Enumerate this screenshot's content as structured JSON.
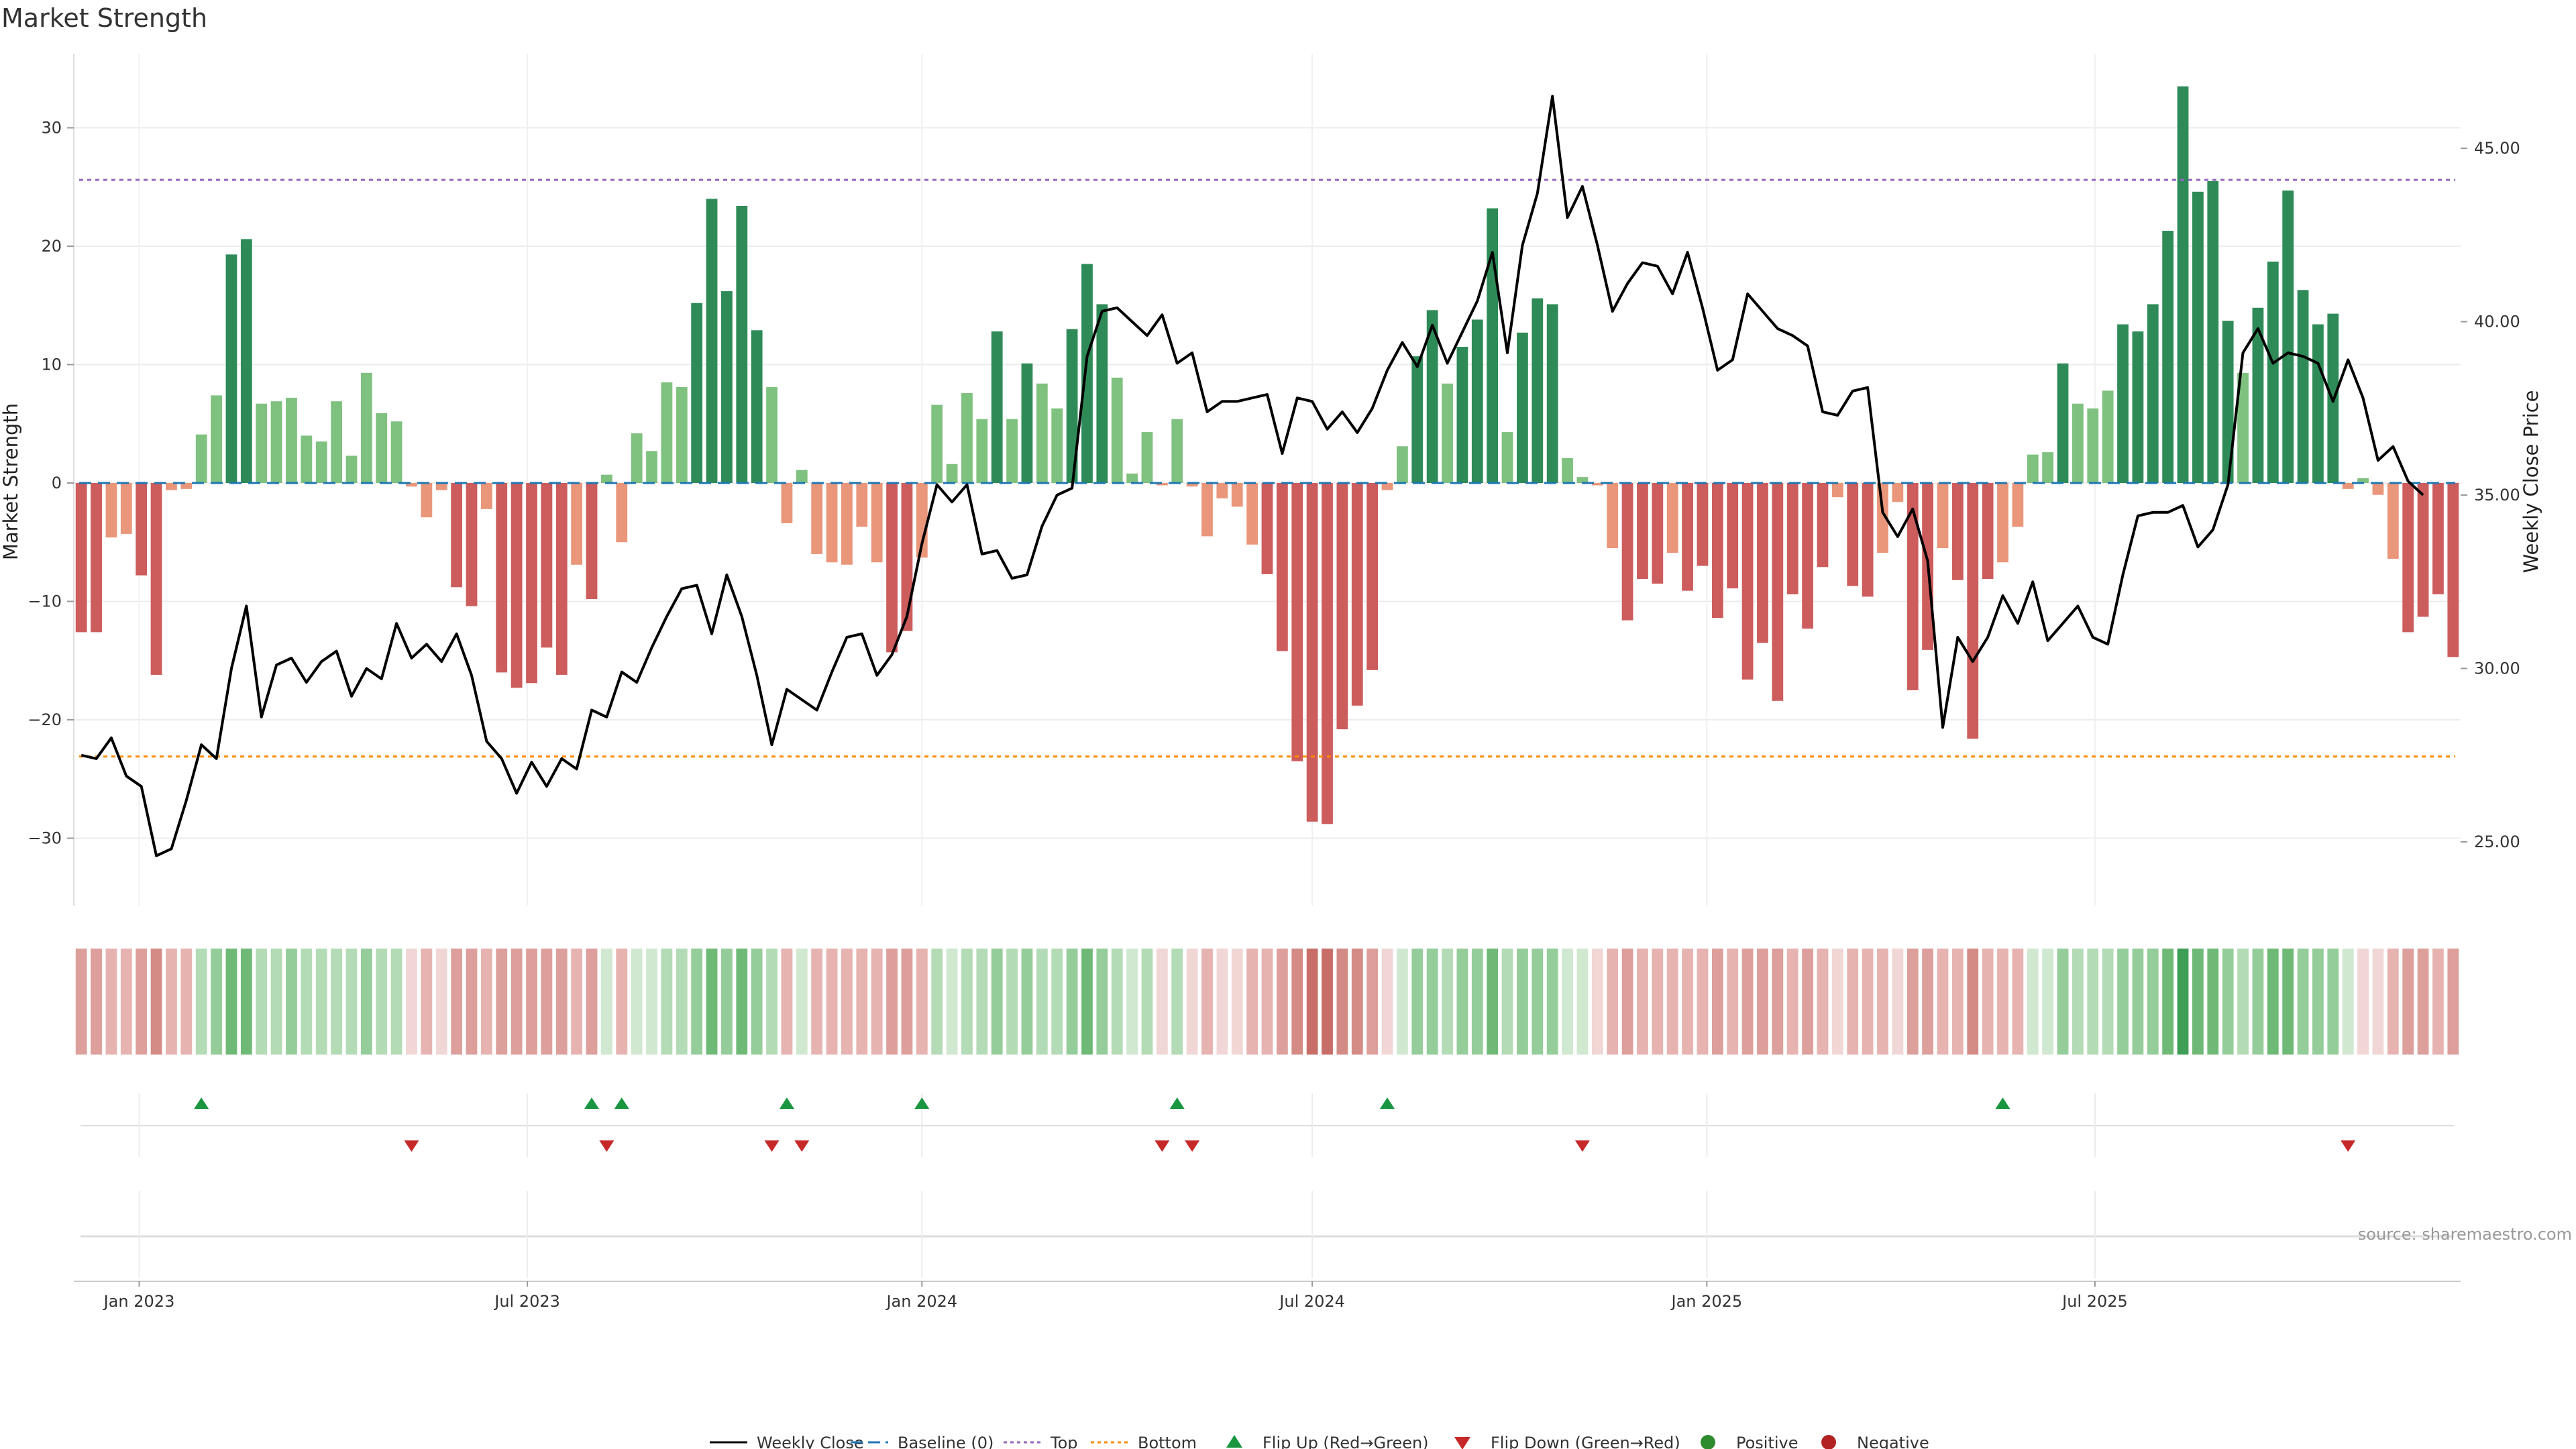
{
  "chart_data": {
    "type": "bar",
    "title": "Market Strength",
    "ylabel": "Market Strength",
    "y2label": "Weekly Close Price",
    "ylim": [
      -36,
      37
    ],
    "y2lim": [
      23.0,
      48.0
    ],
    "yticks": [
      30,
      20,
      10,
      0,
      -10,
      -20,
      -30
    ],
    "y2ticks": [
      "45.00",
      "40.00",
      "35.00",
      "30.00",
      "25.00"
    ],
    "x_start": "2022-12-05",
    "x_step_days": 7,
    "xticks": [
      {
        "date": "2023-01-01",
        "label": "Jan 2023"
      },
      {
        "date": "2023-07-01",
        "label": "Jul 2023"
      },
      {
        "date": "2024-01-01",
        "label": "Jan 2024"
      },
      {
        "date": "2024-07-01",
        "label": "Jul 2024"
      },
      {
        "date": "2025-01-01",
        "label": "Jan 2025"
      },
      {
        "date": "2025-07-01",
        "label": "Jul 2025"
      }
    ],
    "top_line": 25.6,
    "bottom_line": -23.1,
    "baseline": 0,
    "strength": [
      -12.6,
      -12.6,
      -4.6,
      -4.3,
      -7.8,
      -16.2,
      -0.6,
      -0.5,
      4.1,
      7.4,
      19.3,
      20.6,
      6.7,
      6.9,
      7.2,
      4.0,
      3.5,
      6.9,
      2.3,
      9.3,
      5.9,
      5.2,
      -0.3,
      -2.9,
      -0.6,
      -8.8,
      -10.4,
      -2.2,
      -16.0,
      -17.3,
      -16.9,
      -13.9,
      -16.2,
      -6.9,
      -9.8,
      0.7,
      -5.0,
      4.2,
      2.7,
      8.5,
      8.1,
      15.2,
      24.0,
      16.2,
      23.4,
      12.9,
      8.1,
      -3.4,
      1.1,
      -6.0,
      -6.7,
      -6.9,
      -3.7,
      -6.7,
      -14.3,
      -12.5,
      -6.3,
      6.6,
      1.6,
      7.6,
      5.4,
      12.8,
      5.4,
      10.1,
      8.4,
      6.3,
      13.0,
      18.5,
      15.1,
      8.9,
      0.8,
      4.3,
      -0.2,
      5.4,
      -0.3,
      -4.5,
      -1.3,
      -2.0,
      -5.2,
      -7.7,
      -14.2,
      -23.5,
      -28.6,
      -28.8,
      -20.8,
      -18.8,
      -15.8,
      -0.6,
      3.1,
      10.7,
      14.6,
      8.4,
      11.5,
      13.8,
      23.2,
      4.3,
      12.7,
      15.6,
      15.1,
      2.1,
      0.5,
      -0.2,
      -5.5,
      -11.6,
      -8.1,
      -8.5,
      -5.9,
      -9.1,
      -7.0,
      -11.4,
      -8.9,
      -16.6,
      -13.5,
      -18.4,
      -9.4,
      -12.3,
      -7.1,
      -1.2,
      -8.7,
      -9.6,
      -5.9,
      -1.6,
      -17.5,
      -14.1,
      -5.5,
      -8.2,
      -21.6,
      -8.1,
      -6.7,
      -3.7,
      2.4,
      2.6,
      10.1,
      6.7,
      6.3,
      7.8,
      13.4,
      12.8,
      15.1,
      21.3,
      33.5,
      24.6,
      25.5,
      13.7,
      9.3,
      14.8,
      18.7,
      24.7,
      16.3,
      13.4,
      14.3,
      -0.5,
      0.4,
      -1.0,
      -6.4,
      -12.6,
      -11.3,
      -9.4,
      -14.7
    ],
    "close": [
      27.5,
      27.4,
      28.0,
      26.9,
      26.6,
      24.6,
      24.8,
      26.2,
      27.8,
      27.4,
      30.0,
      31.8,
      28.6,
      30.1,
      30.3,
      29.6,
      30.2,
      30.5,
      29.2,
      30.0,
      29.7,
      31.3,
      30.3,
      30.7,
      30.2,
      31.0,
      29.8,
      27.9,
      27.4,
      26.4,
      27.3,
      26.6,
      27.4,
      27.1,
      28.8,
      28.6,
      29.9,
      29.6,
      30.6,
      31.5,
      32.3,
      32.4,
      31.0,
      32.7,
      31.5,
      29.8,
      27.8,
      29.4,
      29.1,
      28.8,
      29.9,
      30.9,
      31.0,
      29.8,
      30.4,
      31.5,
      33.6,
      35.3,
      34.8,
      35.3,
      33.3,
      33.4,
      32.6,
      32.7,
      34.1,
      35.0,
      35.2,
      39.0,
      40.3,
      40.4,
      40.0,
      39.6,
      40.2,
      38.8,
      39.1,
      37.4,
      37.7,
      37.7,
      37.8,
      37.9,
      36.2,
      37.8,
      37.7,
      36.9,
      37.4,
      36.8,
      37.5,
      38.6,
      39.4,
      38.7,
      39.9,
      38.8,
      39.7,
      40.6,
      42.0,
      39.1,
      42.2,
      43.7,
      46.5,
      43.0,
      43.9,
      42.2,
      40.3,
      41.1,
      41.7,
      41.6,
      40.8,
      42.0,
      40.4,
      38.6,
      38.9,
      40.8,
      40.3,
      39.8,
      39.6,
      39.3,
      37.4,
      37.3,
      38.0,
      38.1,
      34.5,
      33.8,
      34.6,
      33.1,
      28.3,
      30.9,
      30.2,
      30.9,
      32.1,
      31.3,
      32.5,
      30.8,
      31.3,
      31.8,
      30.9,
      30.7,
      32.7,
      34.4,
      34.5,
      34.5,
      34.7,
      33.5,
      34.0,
      35.3,
      39.1,
      39.8,
      38.8,
      39.1,
      39.0,
      38.8,
      37.7,
      38.9,
      37.8,
      36.0,
      36.4,
      35.4,
      35.0
    ],
    "heat_levels": [
      -3,
      -3,
      -2,
      -2,
      -3,
      -4,
      -2,
      -2,
      2,
      3,
      4,
      4,
      2,
      2,
      3,
      2,
      2,
      2,
      2,
      3,
      2,
      2,
      -1,
      -2,
      -1,
      -3,
      -3,
      -2,
      -3,
      -3,
      -3,
      -3,
      -3,
      -2,
      -3,
      1,
      -2,
      1,
      1,
      2,
      2,
      3,
      4,
      3,
      4,
      3,
      2,
      -2,
      1,
      -2,
      -2,
      -2,
      -2,
      -2,
      -3,
      -3,
      -2,
      2,
      1,
      2,
      2,
      3,
      2,
      3,
      2,
      2,
      3,
      4,
      3,
      2,
      1,
      2,
      -1,
      2,
      -1,
      -2,
      -1,
      -1,
      -2,
      -2,
      -3,
      -4,
      -5,
      -5,
      -4,
      -4,
      -3,
      -1,
      1,
      3,
      3,
      2,
      3,
      3,
      4,
      2,
      3,
      3,
      3,
      1,
      1,
      -1,
      -2,
      -3,
      -2,
      -2,
      -2,
      -2,
      -2,
      -3,
      -2,
      -3,
      -3,
      -3,
      -2,
      -3,
      -2,
      -1,
      -2,
      -2,
      -2,
      -1,
      -3,
      -3,
      -2,
      -2,
      -4,
      -2,
      -2,
      -2,
      1,
      1,
      3,
      2,
      2,
      2,
      3,
      3,
      3,
      4,
      5,
      4,
      4,
      3,
      2,
      3,
      4,
      4,
      3,
      3,
      3,
      1,
      -1,
      -1,
      -2,
      -3,
      -3,
      -2,
      -3
    ],
    "flips_up": [
      8,
      34,
      36,
      47,
      56,
      73,
      87,
      128
    ],
    "flips_down": [
      22,
      35,
      46,
      48,
      72,
      74,
      100,
      151
    ],
    "colors": {
      "strong_positive": "#2e8b57",
      "positive": "#7fc17f",
      "strong_negative": "#cd5c5c",
      "negative": "#e9967a",
      "close_line": "#000000",
      "top": "#9467bd",
      "bottom": "#ff8c00",
      "baseline": "#1f77b4",
      "flip_up": "#1a9641",
      "flip_down": "#c62828",
      "positive_dot": "#2e8b2e",
      "negative_dot": "#b22222"
    },
    "legend": [
      {
        "label": "Weekly Close",
        "kind": "line-solid",
        "color": "#000000"
      },
      {
        "label": "Baseline (0)",
        "kind": "line-dash",
        "color": "#1f77b4"
      },
      {
        "label": "Top",
        "kind": "line-dot",
        "color": "#9467bd"
      },
      {
        "label": "Bottom",
        "kind": "line-dot",
        "color": "#ff8c00"
      },
      {
        "label": "Flip Up (Red→Green)",
        "kind": "tri-up",
        "color": "#1a9641"
      },
      {
        "label": "Flip Down (Green→Red)",
        "kind": "tri-down",
        "color": "#c62828"
      },
      {
        "label": "Positive",
        "kind": "dot",
        "color": "#2e8b2e"
      },
      {
        "label": "Negative",
        "kind": "dot",
        "color": "#b22222"
      }
    ],
    "source": "source: sharemaestro.com"
  }
}
